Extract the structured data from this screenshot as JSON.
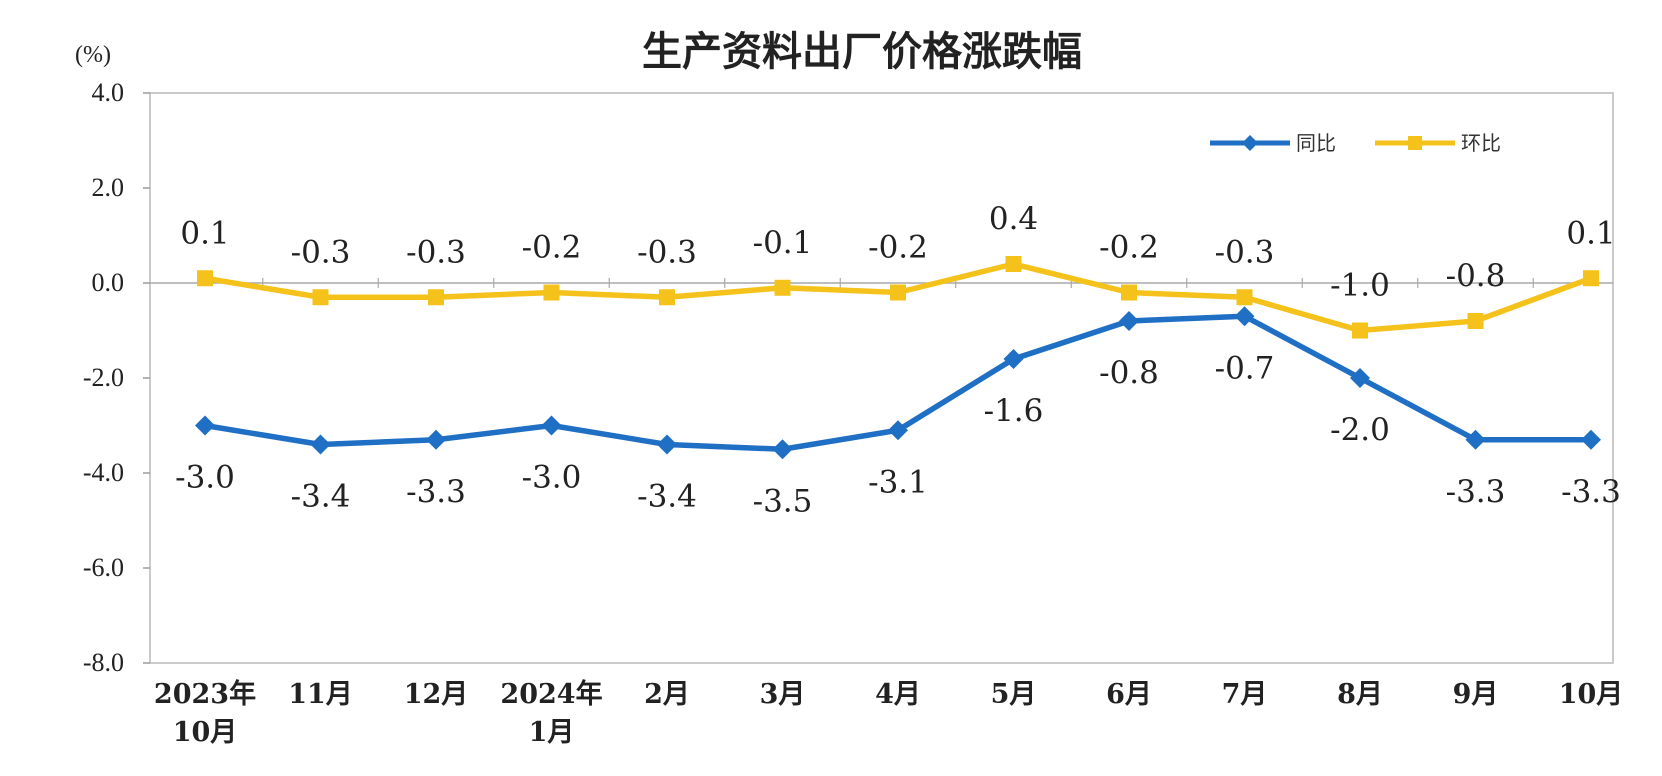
{
  "chart_data": {
    "type": "line",
    "title": "生产资料出厂价格涨跌幅",
    "ylabel": "(%)",
    "ylim": [
      -8.0,
      4.0
    ],
    "yticks": [
      "4.0",
      "2.0",
      "0.0",
      "-2.0",
      "-4.0",
      "-6.0",
      "-8.0"
    ],
    "ytick_values": [
      4,
      2,
      0,
      -2,
      -4,
      -6,
      -8
    ],
    "categories": [
      [
        "2023年",
        "10月"
      ],
      [
        "11月"
      ],
      [
        "12月"
      ],
      [
        "2024年",
        "1月"
      ],
      [
        "2月"
      ],
      [
        "3月"
      ],
      [
        "4月"
      ],
      [
        "5月"
      ],
      [
        "6月"
      ],
      [
        "7月"
      ],
      [
        "8月"
      ],
      [
        "9月"
      ],
      [
        "10月"
      ]
    ],
    "series": [
      {
        "name": "同比",
        "color": "#1f6fc5",
        "marker": "diamond",
        "label_position": "below",
        "values": [
          -3.0,
          -3.4,
          -3.3,
          -3.0,
          -3.4,
          -3.5,
          -3.1,
          -1.6,
          -0.8,
          -0.7,
          -2.0,
          -3.3,
          -3.3
        ],
        "labels": [
          "-3.0",
          "-3.4",
          "-3.3",
          "-3.0",
          "-3.4",
          "-3.5",
          "-3.1",
          "-1.6",
          "-0.8",
          "-0.7",
          "-2.0",
          "-3.3",
          "-3.3"
        ]
      },
      {
        "name": "环比",
        "color": "#f5c21b",
        "marker": "square",
        "label_position": "above",
        "values": [
          0.1,
          -0.3,
          -0.3,
          -0.2,
          -0.3,
          -0.1,
          -0.2,
          0.4,
          -0.2,
          -0.3,
          -1.0,
          -0.8,
          0.1
        ],
        "labels": [
          "0.1",
          "-0.3",
          "-0.3",
          "-0.2",
          "-0.3",
          "-0.1",
          "-0.2",
          "0.4",
          "-0.2",
          "-0.3",
          "-1.0",
          "-0.8",
          "0.1"
        ]
      }
    ],
    "grid": false,
    "zero_line": true,
    "legend_position": "top-right"
  }
}
